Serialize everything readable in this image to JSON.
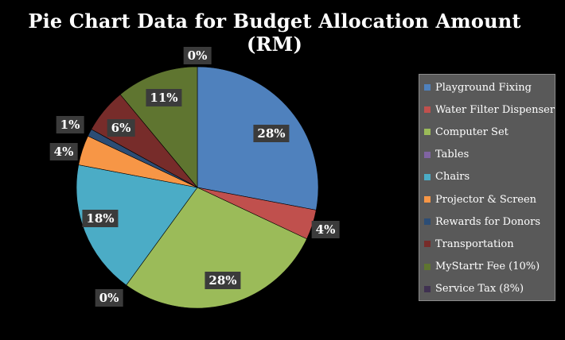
{
  "chart_data": {
    "type": "pie",
    "title": "Pie Chart Data for Budget Allocation Amount (RM)",
    "labels": [
      "Playground Fixing",
      "Water Filter Dispenser",
      "Computer Set",
      "Tables",
      "Chairs",
      "Projector & Screen",
      "Rewards for Donors",
      "Transportation",
      "MyStartr Fee (10%)",
      "Service Tax (8%)"
    ],
    "values": [
      28,
      4,
      28,
      0,
      18,
      4,
      1,
      6,
      11,
      0
    ],
    "value_labels": [
      "28%",
      "4%",
      "28%",
      "0%",
      "18%",
      "4%",
      "1%",
      "6%",
      "11%",
      "0%"
    ],
    "colors": [
      "#4f81bd",
      "#c0504d",
      "#9bbb59",
      "#8064a2",
      "#4bacc6",
      "#f79646",
      "#2c4d75",
      "#772c2a",
      "#5f7530",
      "#3f3151"
    ],
    "legend_position": "right",
    "start_angle": "top",
    "direction": "clockwise"
  }
}
